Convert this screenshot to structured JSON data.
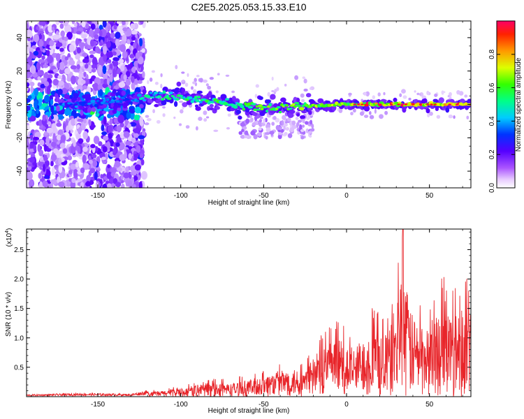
{
  "title": "C2E5.2025.053.15.33.E10",
  "chart_data": [
    {
      "type": "heatmap",
      "xlabel": "Height of straight line (km)",
      "ylabel": "Frequency (Hz)",
      "xlim": [
        -193,
        75
      ],
      "ylim": [
        -50,
        50
      ],
      "xticks": [
        -150,
        -100,
        -50,
        0,
        50
      ],
      "yticks": [
        -40,
        -20,
        0,
        20,
        40
      ],
      "grid": false,
      "colorbar": {
        "label": "Normalized spectral amplitude",
        "range": [
          0,
          1
        ],
        "ticks": [
          "0.0",
          "0.2",
          "0.4",
          "0.6",
          "0.8"
        ],
        "colors": [
          "#ffffff",
          "#cc99ff",
          "#6600ff",
          "#0000ff",
          "#00ffff",
          "#00ff00",
          "#ffff00",
          "#ff8800",
          "#ff0066"
        ]
      },
      "ridge": [
        {
          "x": -170,
          "y": 0
        },
        {
          "x": -150,
          "y": 0
        },
        {
          "x": -120,
          "y": 5
        },
        {
          "x": -100,
          "y": 5
        },
        {
          "x": -80,
          "y": 2
        },
        {
          "x": -60,
          "y": -1
        },
        {
          "x": -40,
          "y": -2
        },
        {
          "x": -20,
          "y": -1
        },
        {
          "x": 0,
          "y": 0
        },
        {
          "x": 30,
          "y": 0
        },
        {
          "x": 50,
          "y": 0
        },
        {
          "x": 73,
          "y": 0
        }
      ]
    },
    {
      "type": "line",
      "xlabel": "Height of straight line (km)",
      "ylabel": "SNR (10 * v/v)",
      "yscale_label": "(x10",
      "yscale_exp": "4",
      "xlim": [
        -193,
        75
      ],
      "ylim": [
        0,
        2.85
      ],
      "xticks": [
        -150,
        -100,
        -50,
        0,
        50
      ],
      "yticks": [
        "0.5",
        "1.0",
        "1.5",
        "2.0",
        "2.5"
      ],
      "grid": false,
      "color": "#e8252a",
      "envelope": [
        {
          "x": -193,
          "y": 0.03
        },
        {
          "x": -160,
          "y": 0.05
        },
        {
          "x": -130,
          "y": 0.04
        },
        {
          "x": -115,
          "y": 0.12
        },
        {
          "x": -100,
          "y": 0.18
        },
        {
          "x": -85,
          "y": 0.32
        },
        {
          "x": -70,
          "y": 0.3
        },
        {
          "x": -55,
          "y": 0.42
        },
        {
          "x": -40,
          "y": 0.6
        },
        {
          "x": -25,
          "y": 0.62
        },
        {
          "x": -15,
          "y": 1.15
        },
        {
          "x": -5,
          "y": 1.3
        },
        {
          "x": 5,
          "y": 1.1
        },
        {
          "x": 15,
          "y": 1.6
        },
        {
          "x": 25,
          "y": 1.4
        },
        {
          "x": 34,
          "y": 2.85
        },
        {
          "x": 40,
          "y": 1.8
        },
        {
          "x": 50,
          "y": 1.5
        },
        {
          "x": 57,
          "y": 2.1
        },
        {
          "x": 65,
          "y": 1.9
        },
        {
          "x": 73,
          "y": 2.05
        }
      ]
    }
  ]
}
